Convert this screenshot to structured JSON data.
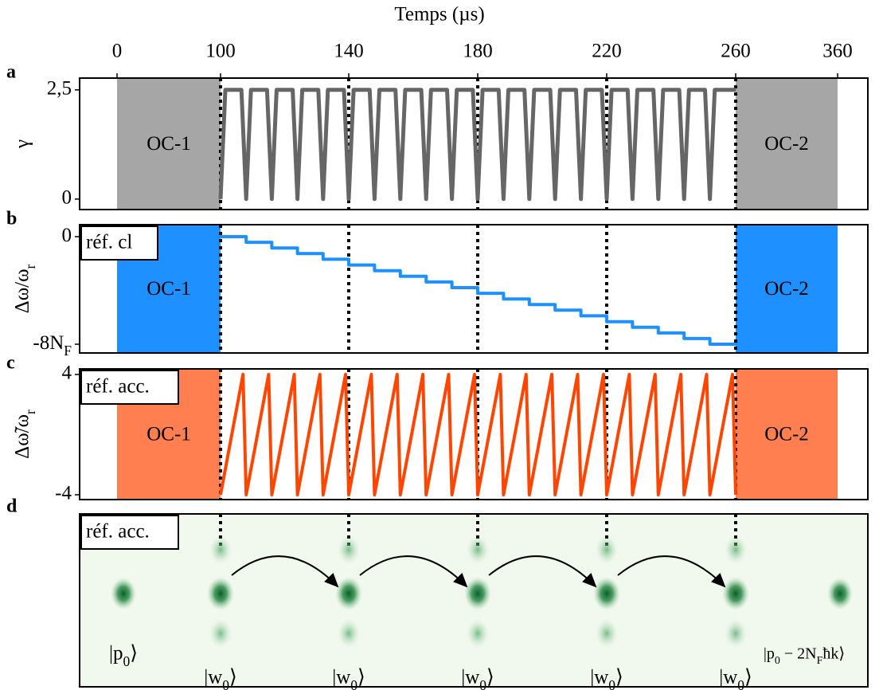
{
  "chart_data": [
    {
      "type": "line",
      "panel": "a",
      "xlabel": "Temps (µs)",
      "xticks": [
        0,
        100,
        140,
        180,
        220,
        260,
        360
      ],
      "ylabel": "γ",
      "ylim": [
        -0.24,
        2.77
      ],
      "yticks": [
        0,
        {
          "value": 2.5,
          "label": "2,5"
        }
      ],
      "regions": [
        {
          "label": "OC-1",
          "x": [
            0,
            100
          ],
          "color": "#a6a6a6"
        },
        {
          "label": "OC-2",
          "x": [
            260,
            360
          ],
          "color": "#a6a6a6"
        }
      ],
      "series": [
        {
          "color": "#666666",
          "x": [
            100,
            101.5,
            106.5,
            108,
            109.5,
            114.5,
            116,
            117.5,
            122.5,
            124,
            125.5,
            130.5,
            132,
            133.5,
            138.5,
            140,
            141.5,
            146.5,
            148,
            149.5,
            154.5,
            156,
            157.5,
            162.5,
            164,
            165.5,
            170.5,
            172,
            173.5,
            178.5,
            180,
            181.5,
            186.5,
            188,
            189.5,
            194.5,
            196,
            197.5,
            202.5,
            204,
            205.5,
            210.5,
            212,
            213.5,
            218.5,
            220,
            221.5,
            226.5,
            228,
            229.5,
            234.5,
            236,
            237.5,
            242.5,
            244,
            245.5,
            250.5,
            252,
            253.5,
            260
          ],
          "values": [
            0,
            2.5,
            2.5,
            0,
            2.5,
            2.5,
            0,
            2.5,
            2.5,
            0,
            2.5,
            2.5,
            0,
            2.5,
            2.5,
            0,
            2.5,
            2.5,
            0,
            2.5,
            2.5,
            0,
            2.5,
            2.5,
            0,
            2.5,
            2.5,
            0,
            2.5,
            2.5,
            0,
            2.5,
            2.5,
            0,
            2.5,
            2.5,
            0,
            2.5,
            2.5,
            0,
            2.5,
            2.5,
            0,
            2.5,
            2.5,
            0,
            2.5,
            2.5,
            0,
            2.5,
            2.5,
            0,
            2.5,
            2.5,
            0,
            2.5,
            2.5,
            0,
            2.5,
            2.5
          ]
        }
      ]
    },
    {
      "type": "line",
      "panel": "b",
      "inset": "réf. cl",
      "ylabel": "Δω/ω_r",
      "ylim": [
        -8.65,
        0.89
      ],
      "yticks": [
        0,
        {
          "value": -8,
          "label": "-8N_F"
        }
      ],
      "regions": [
        {
          "label": "OC-1",
          "x": [
            0,
            100
          ],
          "color": "#1e90ff"
        },
        {
          "label": "OC-2",
          "x": [
            260,
            360
          ],
          "color": "#1e90ff"
        }
      ],
      "series": [
        {
          "color": "#1e90ff",
          "x": [
            100,
            108,
            108,
            116,
            116,
            124,
            124,
            132,
            132,
            140,
            140,
            148,
            148,
            156,
            156,
            164,
            164,
            172,
            172,
            180,
            180,
            188,
            188,
            196,
            196,
            204,
            204,
            212,
            212,
            220,
            220,
            228,
            228,
            236,
            236,
            244,
            244,
            252,
            252,
            260
          ],
          "values": [
            0,
            0,
            -0.42,
            -0.42,
            -0.84,
            -0.84,
            -1.26,
            -1.26,
            -1.68,
            -1.68,
            -2.11,
            -2.11,
            -2.53,
            -2.53,
            -2.95,
            -2.95,
            -3.37,
            -3.37,
            -3.79,
            -3.79,
            -4.21,
            -4.21,
            -4.63,
            -4.63,
            -5.05,
            -5.05,
            -5.47,
            -5.47,
            -5.89,
            -5.89,
            -6.32,
            -6.32,
            -6.74,
            -6.74,
            -7.16,
            -7.16,
            -7.58,
            -7.58,
            -8,
            -8
          ]
        }
      ]
    },
    {
      "type": "line",
      "panel": "c",
      "inset": "réf. acc.",
      "ylabel": "Δω̃/ω_r",
      "ylim": [
        -4.32,
        4.37
      ],
      "yticks": [
        4,
        -4
      ],
      "regions": [
        {
          "label": "OC-1",
          "x": [
            0,
            100
          ],
          "color": "#ff7f50"
        },
        {
          "label": "OC-2",
          "x": [
            260,
            360
          ],
          "color": "#ff7f50"
        }
      ],
      "series": [
        {
          "color": "#ff4500",
          "x": [
            100,
            107,
            108,
            115,
            116,
            123,
            124,
            131,
            132,
            139,
            140,
            147,
            148,
            155,
            156,
            163,
            164,
            171,
            172,
            179,
            180,
            187,
            188,
            195,
            196,
            203,
            204,
            211,
            212,
            219,
            220,
            227,
            228,
            235,
            236,
            243,
            244,
            251,
            252,
            259,
            260
          ],
          "values": [
            -4,
            4,
            -4,
            4,
            -4,
            4,
            -4,
            4,
            -4,
            4,
            -4,
            4,
            -4,
            4,
            -4,
            4,
            -4,
            4,
            -4,
            4,
            -4,
            4,
            -4,
            4,
            -4,
            4,
            -4,
            4,
            -4,
            4,
            -4,
            4,
            -4,
            4,
            -4,
            4,
            -4,
            4,
            -4,
            4,
            -4
          ]
        }
      ]
    }
  ],
  "panel_d": {
    "panel": "d",
    "inset": "réf. acc.",
    "labels": [
      "|p_0⟩",
      "|w_0⟩",
      "|w_0⟩",
      "|w_0⟩",
      "|w_0⟩",
      "|w_0⟩",
      "|p_0 − 2N_Fħk⟩"
    ]
  }
}
